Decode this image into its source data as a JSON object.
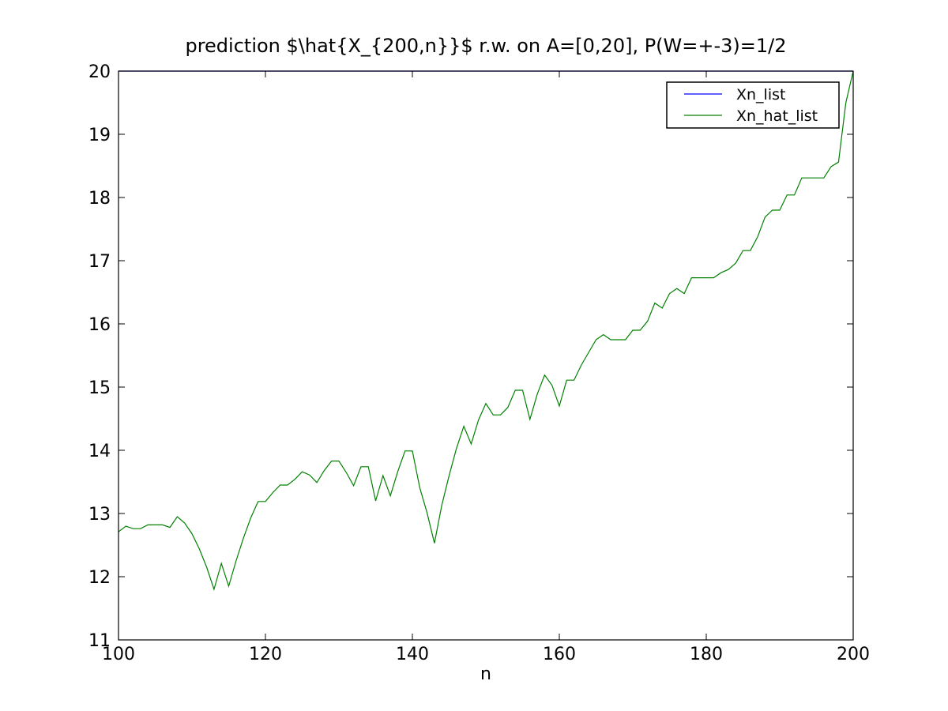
{
  "chart_data": {
    "type": "line",
    "title": "prediction $\\hat{X_{200,n}}$ r.w. on A=[0,20], P(W=+-3)=1/2",
    "x_label": "n",
    "x": [
      100,
      101,
      102,
      103,
      104,
      105,
      106,
      107,
      108,
      109,
      110,
      111,
      112,
      113,
      114,
      115,
      116,
      117,
      118,
      119,
      120,
      121,
      122,
      123,
      124,
      125,
      126,
      127,
      128,
      129,
      130,
      131,
      132,
      133,
      134,
      135,
      136,
      137,
      138,
      139,
      140,
      141,
      142,
      143,
      144,
      145,
      146,
      147,
      148,
      149,
      150,
      151,
      152,
      153,
      154,
      155,
      156,
      157,
      158,
      159,
      160,
      161,
      162,
      163,
      164,
      165,
      166,
      167,
      168,
      169,
      170,
      171,
      172,
      173,
      174,
      175,
      176,
      177,
      178,
      179,
      180,
      181,
      182,
      183,
      184,
      185,
      186,
      187,
      188,
      189,
      190,
      191,
      192,
      193,
      194,
      195,
      196,
      197,
      198,
      199,
      200
    ],
    "series": [
      {
        "name": "Xn_list",
        "color": "#0000ff",
        "values": [
          20,
          20,
          20,
          20,
          20,
          20,
          20,
          20,
          20,
          20,
          20,
          20,
          20,
          20,
          20,
          20,
          20,
          20,
          20,
          20,
          20,
          20,
          20,
          20,
          20,
          20,
          20,
          20,
          20,
          20,
          20,
          20,
          20,
          20,
          20,
          20,
          20,
          20,
          20,
          20,
          20,
          20,
          20,
          20,
          20,
          20,
          20,
          20,
          20,
          20,
          20,
          20,
          20,
          20,
          20,
          20,
          20,
          20,
          20,
          20,
          20,
          20,
          20,
          20,
          20,
          20,
          20,
          20,
          20,
          20,
          20,
          20,
          20,
          20,
          20,
          20,
          20,
          20,
          20,
          20,
          20,
          20,
          20,
          20,
          20,
          20,
          20,
          20,
          20,
          20,
          20,
          20,
          20,
          20,
          20,
          20,
          20,
          20,
          20,
          20,
          20
        ]
      },
      {
        "name": "Xn_hat_list",
        "color": "#008000",
        "values": [
          12.71,
          12.8,
          12.76,
          12.76,
          12.82,
          12.82,
          12.82,
          12.78,
          12.95,
          12.85,
          12.68,
          12.44,
          12.15,
          11.8,
          12.21,
          11.85,
          12.25,
          12.61,
          12.93,
          13.19,
          13.19,
          13.33,
          13.45,
          13.45,
          13.54,
          13.66,
          13.61,
          13.49,
          13.68,
          13.83,
          13.83,
          13.65,
          13.44,
          13.74,
          13.74,
          13.2,
          13.6,
          13.28,
          13.66,
          13.99,
          13.99,
          13.41,
          13.01,
          12.53,
          13.13,
          13.6,
          14.03,
          14.38,
          14.1,
          14.48,
          14.74,
          14.56,
          14.56,
          14.68,
          14.95,
          14.95,
          14.49,
          14.89,
          15.19,
          15.03,
          14.7,
          15.11,
          15.11,
          15.35,
          15.55,
          15.75,
          15.83,
          15.75,
          15.75,
          15.75,
          15.9,
          15.9,
          16.04,
          16.33,
          16.25,
          16.48,
          16.56,
          16.48,
          16.73,
          16.73,
          16.73,
          16.73,
          16.81,
          16.86,
          16.96,
          17.16,
          17.16,
          17.38,
          17.69,
          17.8,
          17.8,
          18.04,
          18.04,
          18.31,
          18.31,
          18.31,
          18.31,
          18.49,
          18.56,
          19.5,
          20
        ]
      }
    ],
    "xlim": [
      100,
      200
    ],
    "xticks": [
      100,
      120,
      140,
      160,
      180,
      200
    ],
    "ylim": [
      11,
      20
    ],
    "yticks": [
      11,
      12,
      13,
      14,
      15,
      16,
      17,
      18,
      19,
      20
    ],
    "legend": "upper right",
    "grid": false
  }
}
